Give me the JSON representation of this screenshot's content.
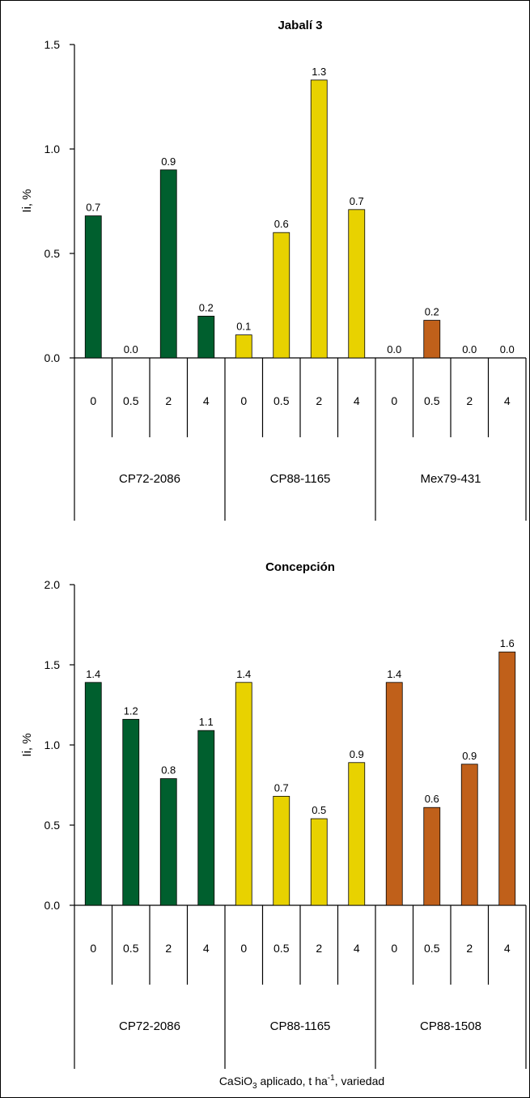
{
  "chart_data": [
    {
      "type": "bar",
      "title": "Jabalí 3",
      "title_color": "#1e6b2f",
      "ylabel": "Ii, %",
      "ylim": [
        0,
        1.5
      ],
      "yticks": [
        "0.0",
        "0.5",
        "1.0",
        "1.5"
      ],
      "groups": [
        {
          "name": "CP72-2086",
          "color": "#005f2e",
          "categories": [
            "0",
            "0.5",
            "2",
            "4"
          ],
          "values": [
            0.68,
            0.0,
            0.9,
            0.2
          ],
          "labels": [
            "0.7",
            "0.0",
            "0.9",
            "0.2"
          ]
        },
        {
          "name": "CP88-1165",
          "color": "#e8d200",
          "categories": [
            "0",
            "0.5",
            "2",
            "4"
          ],
          "values": [
            0.11,
            0.6,
            1.33,
            0.71
          ],
          "labels": [
            "0.1",
            "0.6",
            "1.3",
            "0.7"
          ]
        },
        {
          "name": "Mex79-431",
          "color": "#c0601a",
          "categories": [
            "0",
            "0.5",
            "2",
            "4"
          ],
          "values": [
            0.0,
            0.18,
            0.0,
            0.0
          ],
          "labels": [
            "0.0",
            "0.2",
            "0.0",
            "0.0"
          ]
        }
      ]
    },
    {
      "type": "bar",
      "title": "Concepción",
      "title_color": "#1e6b2f",
      "ylabel": "Ii, %",
      "ylim": [
        0,
        2.0
      ],
      "yticks": [
        "0.0",
        "0.5",
        "1.0",
        "1.5",
        "2.0"
      ],
      "xlabel": "CaSiO3 aplicado, t ha-1, variedad",
      "groups": [
        {
          "name": "CP72-2086",
          "color": "#005f2e",
          "categories": [
            "0",
            "0.5",
            "2",
            "4"
          ],
          "values": [
            1.39,
            1.16,
            0.79,
            1.09
          ],
          "labels": [
            "1.4",
            "1.2",
            "0.8",
            "1.1"
          ]
        },
        {
          "name": "CP88-1165",
          "color": "#e8d200",
          "categories": [
            "0",
            "0.5",
            "2",
            "4"
          ],
          "values": [
            1.39,
            0.68,
            0.54,
            0.89
          ],
          "labels": [
            "1.4",
            "0.7",
            "0.5",
            "0.9"
          ]
        },
        {
          "name": "CP88-1508",
          "color": "#c0601a",
          "categories": [
            "0",
            "0.5",
            "2",
            "4"
          ],
          "values": [
            1.39,
            0.61,
            0.88,
            1.58
          ],
          "labels": [
            "1.4",
            "0.6",
            "0.9",
            "1.6"
          ]
        }
      ]
    }
  ],
  "xlabel_parts": {
    "prefix": "CaSiO",
    "sub": "3",
    "middle": " aplicado, t ha",
    "sup": "-1",
    "suffix": ", variedad"
  }
}
